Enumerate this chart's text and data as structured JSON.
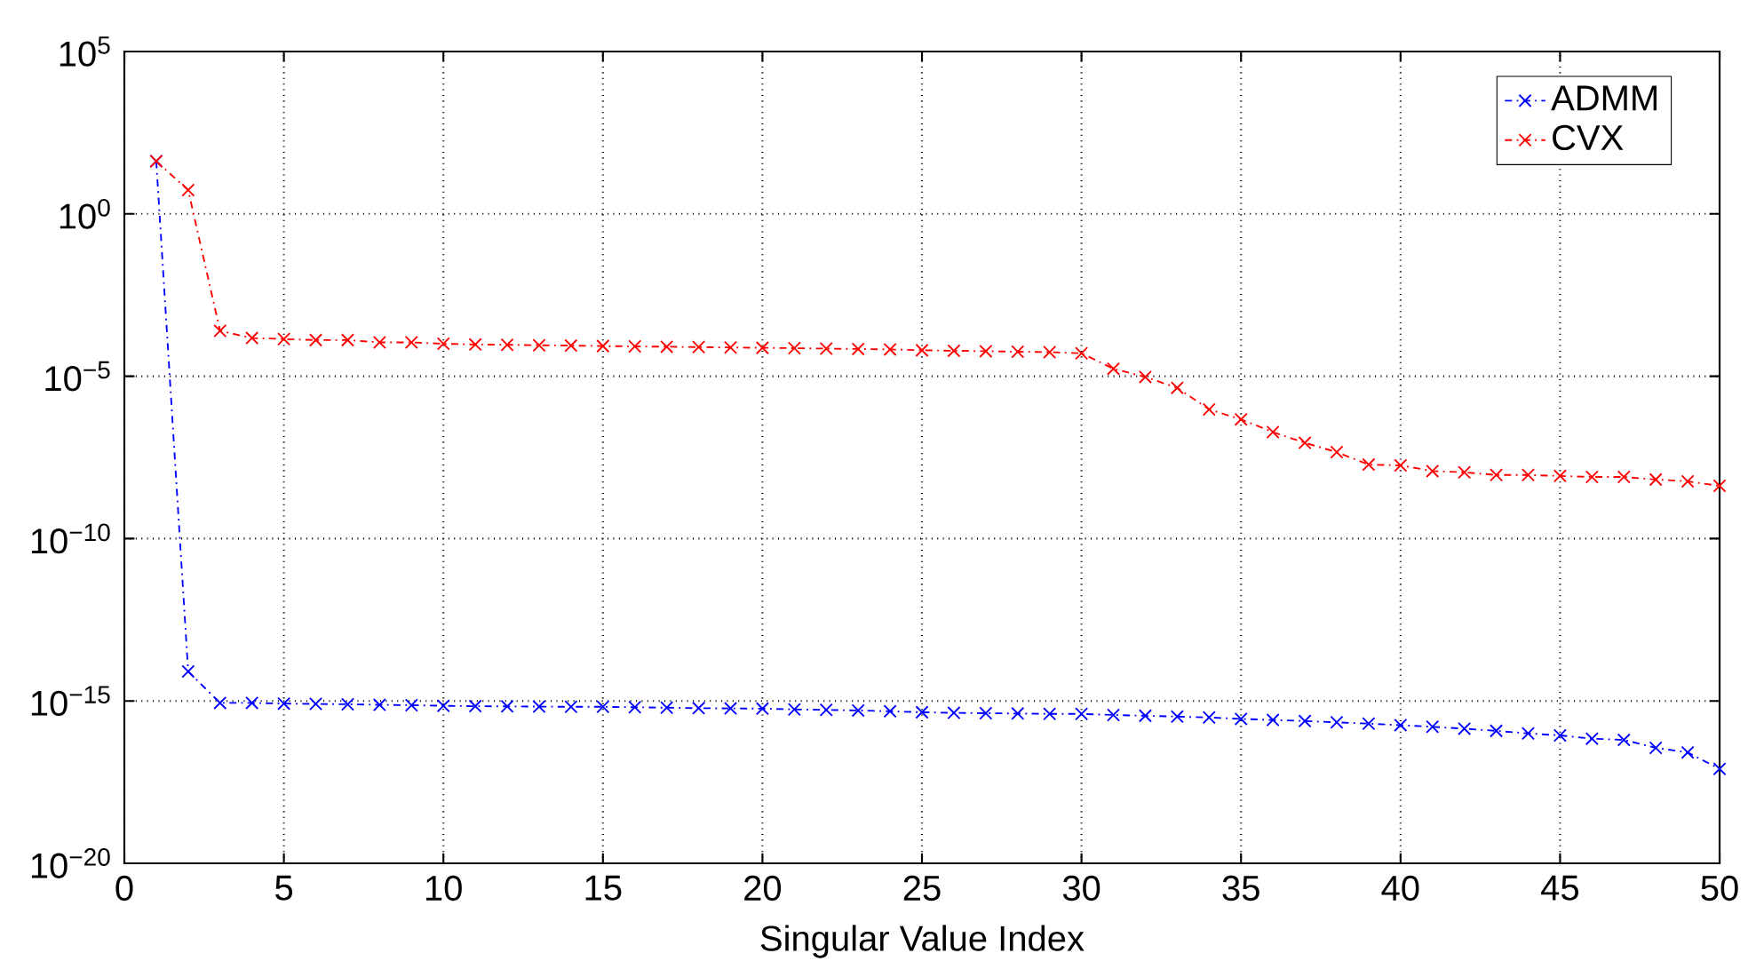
{
  "chart_data": {
    "type": "line",
    "xlabel": "Singular Value Index",
    "x": [
      1,
      2,
      3,
      4,
      5,
      6,
      7,
      8,
      9,
      10,
      11,
      12,
      13,
      14,
      15,
      16,
      17,
      18,
      19,
      20,
      21,
      22,
      23,
      24,
      25,
      26,
      27,
      28,
      29,
      30,
      31,
      32,
      33,
      34,
      35,
      36,
      37,
      38,
      39,
      40,
      41,
      42,
      43,
      44,
      45,
      46,
      47,
      48,
      49,
      50
    ],
    "series": [
      {
        "name": "ADMM",
        "color": "#0000ff",
        "values": [
          42,
          8.1e-15,
          8.7e-16,
          8.7e-16,
          8.3e-16,
          8.1e-16,
          7.9e-16,
          7.6e-16,
          7.4e-16,
          7.1e-16,
          6.9e-16,
          6.8e-16,
          6.7e-16,
          6.6e-16,
          6.6e-16,
          6.4e-16,
          6.2e-16,
          6e-16,
          5.9e-16,
          5.8e-16,
          5.5e-16,
          5.3e-16,
          5.1e-16,
          4.8e-16,
          4.5e-16,
          4.3e-16,
          4.2e-16,
          4.1e-16,
          4e-16,
          4e-16,
          3.7e-16,
          3.5e-16,
          3.3e-16,
          3.1e-16,
          2.8e-16,
          2.6e-16,
          2.4e-16,
          2.2e-16,
          2e-16,
          1.8e-16,
          1.6e-16,
          1.4e-16,
          1.2e-16,
          1e-16,
          8.7e-17,
          6.9e-17,
          6.3e-17,
          3.6e-17,
          2.6e-17,
          8.1e-18
        ]
      },
      {
        "name": "CVX",
        "color": "#ff0000",
        "values": [
          42,
          5.4,
          0.00025,
          0.00015,
          0.00014,
          0.00013,
          0.00013,
          0.00011,
          0.00011,
          0.0001,
          9.5e-05,
          9.3e-05,
          9e-05,
          8.8e-05,
          8.5e-05,
          8.3e-05,
          8.1e-05,
          7.9e-05,
          7.7e-05,
          7.5e-05,
          7.3e-05,
          7.1e-05,
          6.9e-05,
          6.7e-05,
          6.3e-05,
          6.1e-05,
          5.9e-05,
          5.7e-05,
          5.5e-05,
          5.1e-05,
          1.7e-05,
          9.5e-06,
          4.4e-06,
          9.5e-07,
          4.7e-07,
          1.9e-07,
          8.9e-08,
          4.6e-08,
          1.9e-08,
          1.8e-08,
          1.2e-08,
          1.1e-08,
          9.1e-09,
          9.1e-09,
          8.5e-09,
          7.9e-09,
          7.9e-09,
          6.6e-09,
          5.8e-09,
          4.2e-09
        ]
      }
    ],
    "xlim": [
      0,
      50
    ],
    "xticks": [
      0,
      5,
      10,
      15,
      20,
      25,
      30,
      35,
      40,
      45,
      50
    ],
    "ylim": [
      1e-20,
      100000.0
    ],
    "yticks": [
      {
        "value": 1e-20,
        "label": "10$^{−20}$"
      },
      {
        "value": 1e-15,
        "label": "10$^{−15}$"
      },
      {
        "value": 1e-10,
        "label": "10$^{−10}$"
      },
      {
        "value": 1e-05,
        "label": "10$^{−5}$"
      },
      {
        "value": 1,
        "label": "10$^{0}$"
      },
      {
        "value": 100000.0,
        "label": "10$^{5}$"
      }
    ],
    "log": "y",
    "grid": true,
    "legend": "top right",
    "marker": "cross",
    "line_style": "dashed"
  }
}
